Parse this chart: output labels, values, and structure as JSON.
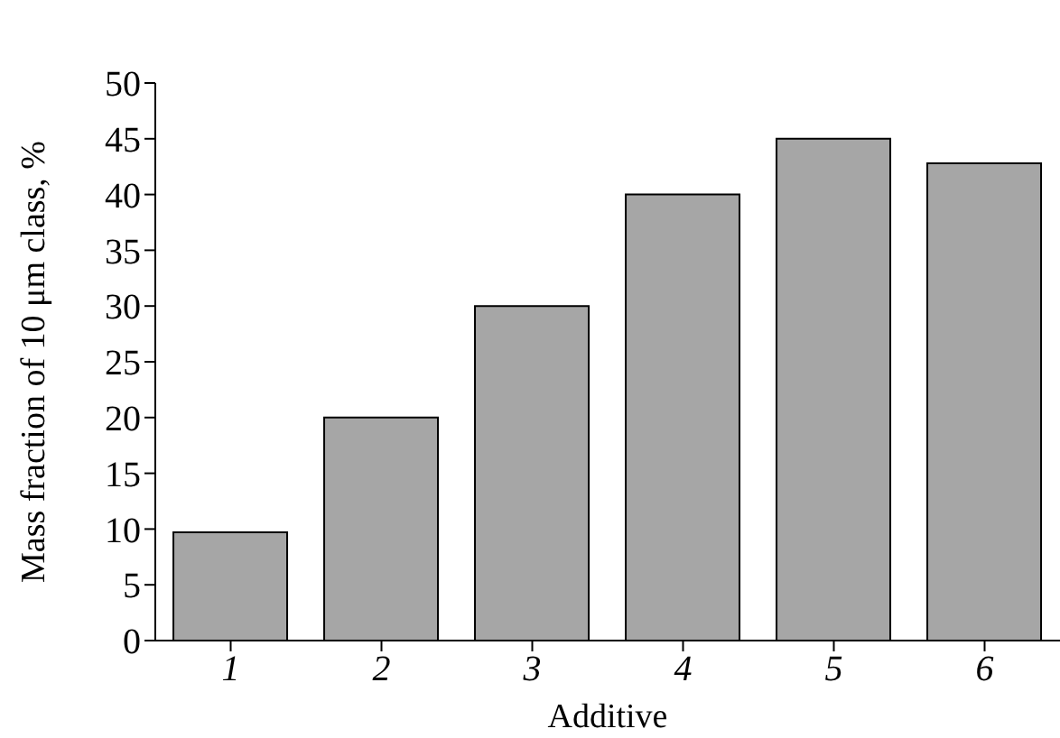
{
  "chart_data": {
    "type": "bar",
    "xlabel": "Additive",
    "ylabel": "Mass fraction of 10 μm class, %",
    "categories": [
      "1",
      "2",
      "3",
      "4",
      "5",
      "6"
    ],
    "values": [
      9.7,
      20,
      30,
      40,
      45,
      42.8
    ],
    "color": "#a6a6a6",
    "ylim": [
      0,
      50
    ],
    "yticks": [
      0,
      5,
      10,
      15,
      20,
      25,
      30,
      35,
      40,
      45,
      50
    ],
    "grid": false,
    "legend": false
  }
}
